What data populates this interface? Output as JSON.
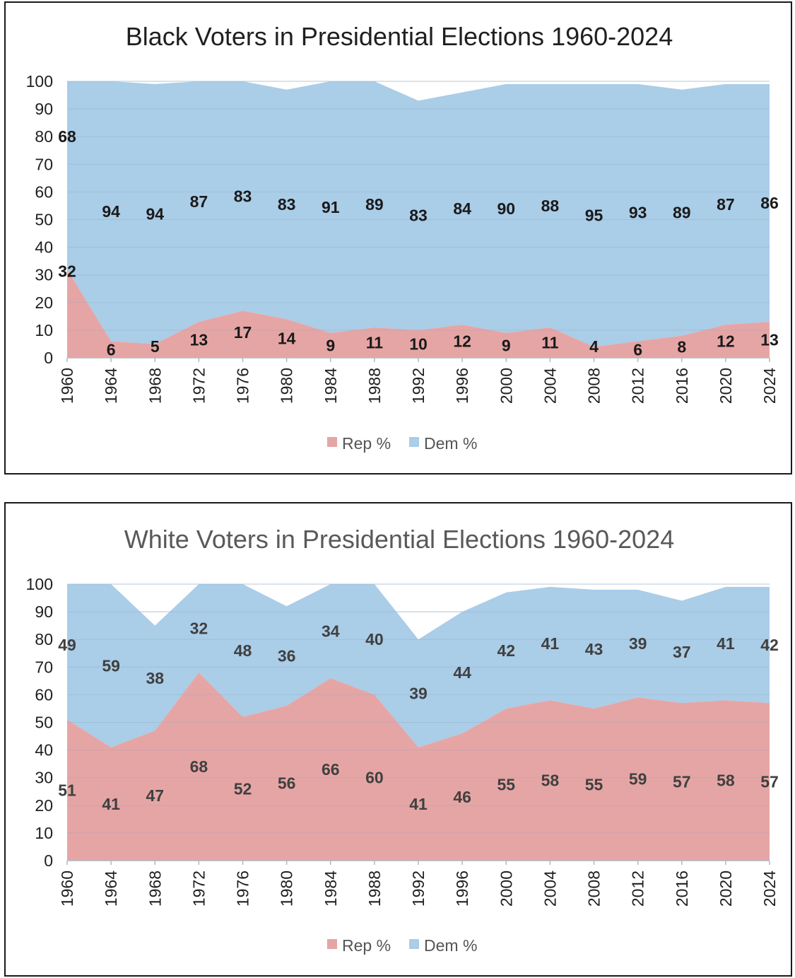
{
  "colors": {
    "rep": "#e6a5a5",
    "dem": "#aacde8",
    "grid": "#cfd8e0",
    "axis": "#b0b8c0"
  },
  "chart_data": [
    {
      "type": "area",
      "title": "Black Voters in Presidential Elections 1960-2024",
      "title_color": "#1f1f1f",
      "label_color": "#1a1a1a",
      "stacked": true,
      "x": [
        1960,
        1964,
        1968,
        1972,
        1976,
        1980,
        1984,
        1988,
        1992,
        1996,
        2000,
        2004,
        2008,
        2012,
        2016,
        2020,
        2024
      ],
      "ylim": [
        0,
        100
      ],
      "yticks": [
        0,
        10,
        20,
        30,
        40,
        50,
        60,
        70,
        80,
        90,
        100
      ],
      "grid": true,
      "legend": "bottom",
      "series": [
        {
          "name": "Rep %",
          "color": "#e6a5a5",
          "values": [
            32,
            6,
            5,
            13,
            17,
            14,
            9,
            11,
            10,
            12,
            9,
            11,
            4,
            6,
            8,
            12,
            13
          ]
        },
        {
          "name": "Dem %",
          "color": "#aacde8",
          "values": [
            68,
            94,
            94,
            87,
            83,
            83,
            91,
            89,
            83,
            84,
            90,
            88,
            95,
            93,
            89,
            87,
            86
          ]
        }
      ]
    },
    {
      "type": "area",
      "title": "White Voters in Presidential Elections 1960-2024",
      "title_color": "#595959",
      "label_color": "#404040",
      "stacked": true,
      "x": [
        1960,
        1964,
        1968,
        1972,
        1976,
        1980,
        1984,
        1988,
        1992,
        1996,
        2000,
        2004,
        2008,
        2012,
        2016,
        2020,
        2024
      ],
      "ylim": [
        0,
        100
      ],
      "yticks": [
        0,
        10,
        20,
        30,
        40,
        50,
        60,
        70,
        80,
        90,
        100
      ],
      "grid": true,
      "legend": "bottom",
      "series": [
        {
          "name": "Rep %",
          "color": "#e6a5a5",
          "values": [
            51,
            41,
            47,
            68,
            52,
            56,
            66,
            60,
            41,
            46,
            55,
            58,
            55,
            59,
            57,
            58,
            57
          ]
        },
        {
          "name": "Dem %",
          "color": "#aacde8",
          "values": [
            49,
            59,
            38,
            32,
            48,
            36,
            34,
            40,
            39,
            44,
            42,
            41,
            43,
            39,
            37,
            41,
            42
          ]
        }
      ]
    }
  ]
}
